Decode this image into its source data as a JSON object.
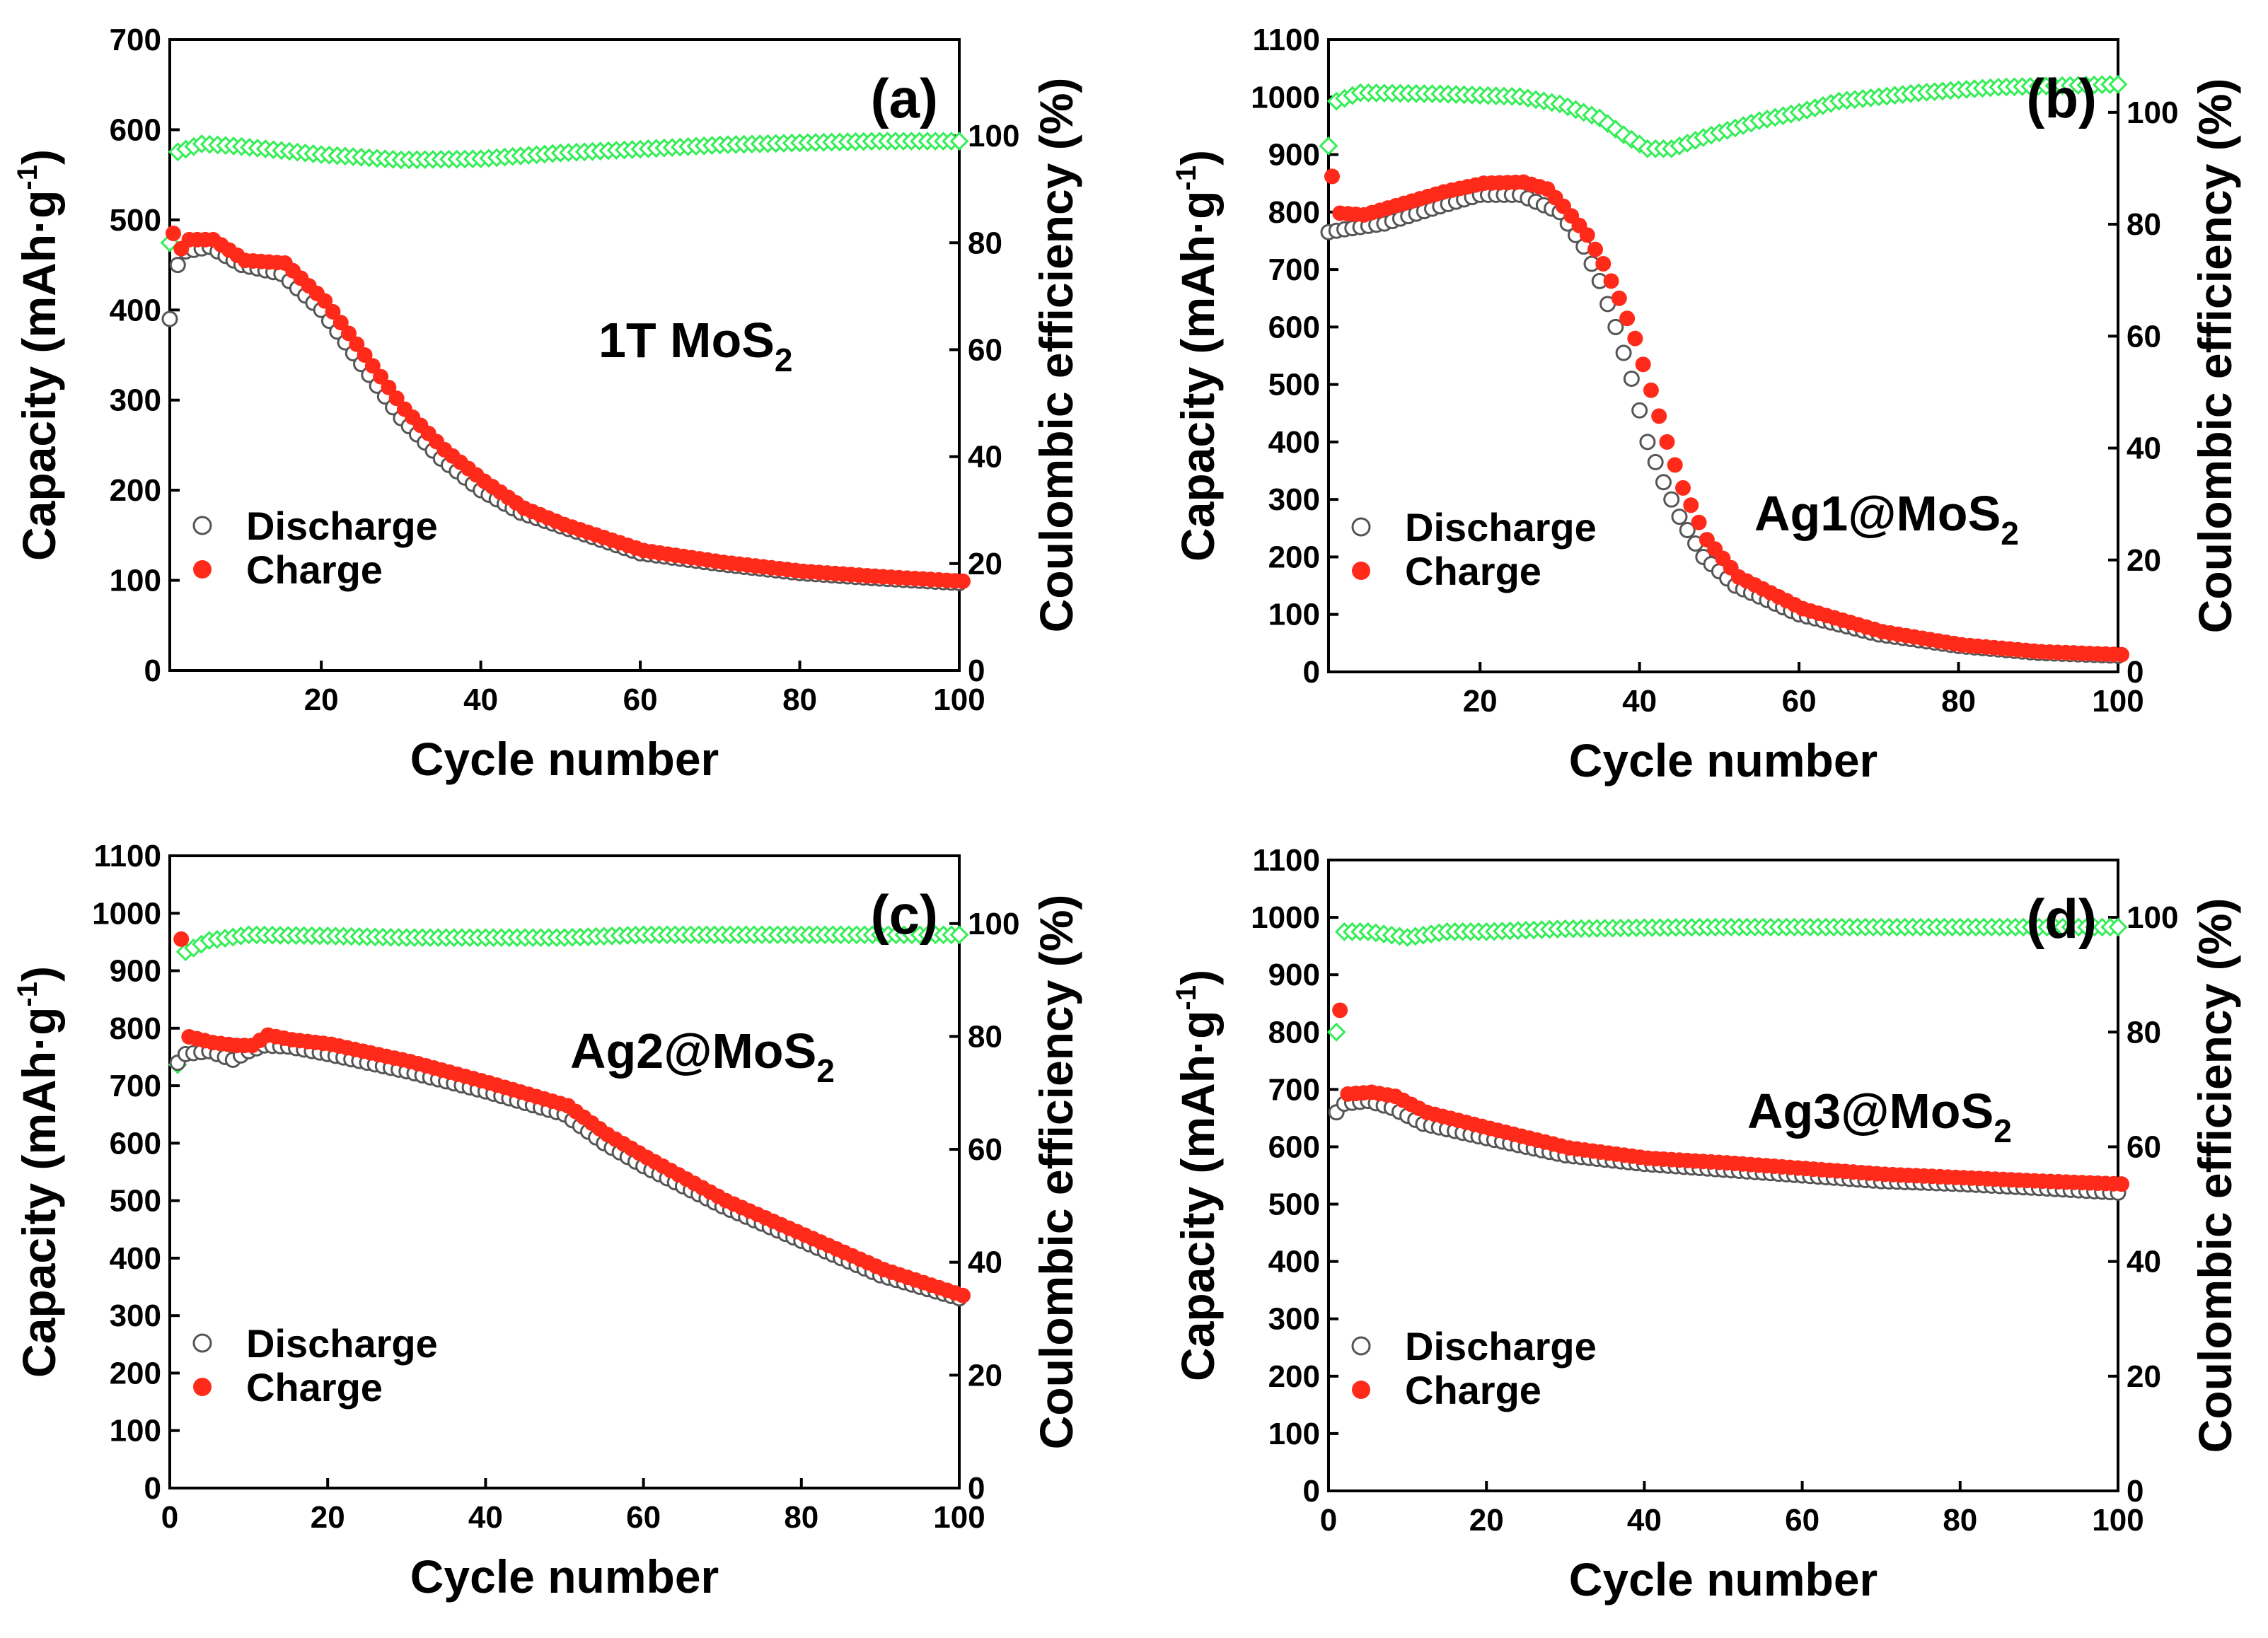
{
  "figure": {
    "legend_discharge": "Discharge",
    "legend_charge": "Charge"
  },
  "colors": {
    "discharge_edge": "#555555",
    "charge": "#ff2a1a",
    "efficiency": "#33ee55",
    "axis": "#000000"
  },
  "chart_data": [
    {
      "panel": "(a)",
      "material": "1T MoS",
      "material_sub": "2",
      "type": "scatter",
      "xlabel": "Cycle number",
      "ylabel_unit_main": "Capacity (mAh·g",
      "ylabel_unit_sup": "-1",
      "ylabel_close": ")",
      "y2label": "Coulombic efficiency (%)",
      "xlim": [
        1,
        100
      ],
      "ylim": [
        0,
        700
      ],
      "y2lim": [
        0,
        118
      ],
      "xticks": [
        20,
        40,
        60,
        80,
        100
      ],
      "yticks": [
        0,
        100,
        200,
        300,
        400,
        500,
        600,
        700
      ],
      "y2ticks": [
        0,
        20,
        40,
        60,
        80,
        100
      ],
      "legend_anchor": "lower-left",
      "series": [
        {
          "name": "Discharge",
          "axis": "left",
          "keypoints": [
            [
              1,
              390
            ],
            [
              2,
              450
            ],
            [
              3,
              465
            ],
            [
              6,
              470
            ],
            [
              10,
              450
            ],
            [
              15,
              440
            ],
            [
              20,
              400
            ],
            [
              25,
              340
            ],
            [
              30,
              280
            ],
            [
              35,
              235
            ],
            [
              40,
              200
            ],
            [
              45,
              175
            ],
            [
              50,
              160
            ],
            [
              60,
              130
            ],
            [
              70,
              118
            ],
            [
              80,
              108
            ],
            [
              90,
              102
            ],
            [
              100,
              97
            ]
          ]
        },
        {
          "name": "Charge",
          "axis": "left",
          "keypoints": [
            [
              1,
              485
            ],
            [
              2,
              468
            ],
            [
              3,
              478
            ],
            [
              6,
              478
            ],
            [
              10,
              455
            ],
            [
              15,
              452
            ],
            [
              20,
              410
            ],
            [
              25,
              350
            ],
            [
              30,
              290
            ],
            [
              35,
              245
            ],
            [
              40,
              210
            ],
            [
              45,
              180
            ],
            [
              50,
              162
            ],
            [
              60,
              133
            ],
            [
              70,
              120
            ],
            [
              80,
              110
            ],
            [
              90,
              104
            ],
            [
              100,
              99
            ]
          ]
        },
        {
          "name": "Coulombic efficiency",
          "axis": "right",
          "keypoints": [
            [
              1,
              80
            ],
            [
              2,
              97
            ],
            [
              5,
              98.5
            ],
            [
              10,
              98
            ],
            [
              20,
              96.5
            ],
            [
              30,
              95.5
            ],
            [
              40,
              95.7
            ],
            [
              50,
              96.8
            ],
            [
              60,
              97.5
            ],
            [
              70,
              98.3
            ],
            [
              80,
              98.7
            ],
            [
              90,
              99
            ],
            [
              100,
              99
            ]
          ]
        }
      ]
    },
    {
      "panel": "(b)",
      "material": "Ag1@MoS",
      "material_sub": "2",
      "type": "scatter",
      "xlabel": "Cycle number",
      "ylabel_unit_main": "Capacity (mAh·g",
      "ylabel_unit_sup": "-1",
      "ylabel_close": ")",
      "y2label": "Coulombic efficiency (%)",
      "xlim": [
        1,
        100
      ],
      "ylim": [
        0,
        1100
      ],
      "y2lim": [
        0,
        113
      ],
      "xticks": [
        20,
        40,
        60,
        80,
        100
      ],
      "yticks": [
        0,
        100,
        200,
        300,
        400,
        500,
        600,
        700,
        800,
        900,
        1000,
        1100
      ],
      "y2ticks": [
        0,
        20,
        40,
        60,
        80,
        100
      ],
      "legend_anchor": "lower-left",
      "series": [
        {
          "name": "Discharge",
          "axis": "left",
          "keypoints": [
            [
              1,
              765
            ],
            [
              3,
              770
            ],
            [
              8,
              780
            ],
            [
              15,
              810
            ],
            [
              20,
              830
            ],
            [
              25,
              830
            ],
            [
              30,
              800
            ],
            [
              33,
              740
            ],
            [
              35,
              680
            ],
            [
              37,
              600
            ],
            [
              39,
              510
            ],
            [
              41,
              400
            ],
            [
              43,
              330
            ],
            [
              45,
              270
            ],
            [
              48,
              200
            ],
            [
              52,
              150
            ],
            [
              60,
              100
            ],
            [
              70,
              65
            ],
            [
              80,
              45
            ],
            [
              90,
              33
            ],
            [
              100,
              28
            ]
          ]
        },
        {
          "name": "Charge",
          "axis": "left",
          "keypoints": [
            [
              1,
              862
            ],
            [
              2,
              798
            ],
            [
              5,
              795
            ],
            [
              10,
              815
            ],
            [
              15,
              835
            ],
            [
              20,
              850
            ],
            [
              25,
              852
            ],
            [
              28,
              840
            ],
            [
              30,
              810
            ],
            [
              33,
              760
            ],
            [
              35,
              710
            ],
            [
              37,
              650
            ],
            [
              39,
              580
            ],
            [
              41,
              490
            ],
            [
              43,
              400
            ],
            [
              45,
              320
            ],
            [
              48,
              230
            ],
            [
              52,
              165
            ],
            [
              60,
              110
            ],
            [
              70,
              70
            ],
            [
              80,
              47
            ],
            [
              90,
              35
            ],
            [
              100,
              30
            ]
          ]
        },
        {
          "name": "Coulombic efficiency",
          "axis": "right",
          "keypoints": [
            [
              1,
              94
            ],
            [
              2,
              102
            ],
            [
              5,
              103.5
            ],
            [
              15,
              103.3
            ],
            [
              25,
              102.8
            ],
            [
              30,
              101.5
            ],
            [
              35,
              99
            ],
            [
              38,
              96
            ],
            [
              41,
              93.5
            ],
            [
              44,
              93.5
            ],
            [
              48,
              95.5
            ],
            [
              55,
              98.5
            ],
            [
              60,
              100
            ],
            [
              65,
              102
            ],
            [
              75,
              103.5
            ],
            [
              85,
              104.5
            ],
            [
              100,
              105
            ]
          ]
        }
      ]
    },
    {
      "panel": "(c)",
      "material": "Ag2@MoS",
      "material_sub": "2",
      "type": "scatter",
      "xlabel": "Cycle number",
      "ylabel_unit_main": "Capacity (mAh·g",
      "ylabel_unit_sup": "-1",
      "ylabel_close": ")",
      "y2label": "Coulombic efficiency (%)",
      "xlim": [
        0,
        100
      ],
      "ylim": [
        0,
        1100
      ],
      "y2lim": [
        0,
        112
      ],
      "xticks": [
        0,
        20,
        40,
        60,
        80,
        100
      ],
      "yticks": [
        0,
        100,
        200,
        300,
        400,
        500,
        600,
        700,
        800,
        900,
        1000,
        1100
      ],
      "y2ticks": [
        0,
        20,
        40,
        60,
        80,
        100
      ],
      "legend_anchor": "lower-left",
      "series": [
        {
          "name": "Discharge",
          "axis": "left",
          "keypoints": [
            [
              1,
              740
            ],
            [
              2,
              755
            ],
            [
              5,
              760
            ],
            [
              8,
              745
            ],
            [
              10,
              760
            ],
            [
              12,
              770
            ],
            [
              15,
              768
            ],
            [
              20,
              755
            ],
            [
              30,
              725
            ],
            [
              40,
              690
            ],
            [
              45,
              670
            ],
            [
              50,
              650
            ],
            [
              55,
              600
            ],
            [
              60,
              560
            ],
            [
              70,
              490
            ],
            [
              80,
              430
            ],
            [
              90,
              370
            ],
            [
              100,
              330
            ]
          ]
        },
        {
          "name": "Charge",
          "axis": "left",
          "keypoints": [
            [
              1,
              955
            ],
            [
              2,
              785
            ],
            [
              5,
              775
            ],
            [
              8,
              770
            ],
            [
              10,
              770
            ],
            [
              12,
              788
            ],
            [
              15,
              780
            ],
            [
              20,
              772
            ],
            [
              30,
              742
            ],
            [
              40,
              705
            ],
            [
              45,
              685
            ],
            [
              50,
              665
            ],
            [
              55,
              615
            ],
            [
              60,
              575
            ],
            [
              70,
              500
            ],
            [
              80,
              440
            ],
            [
              90,
              380
            ],
            [
              100,
              335
            ]
          ]
        },
        {
          "name": "Coulombic efficiency",
          "axis": "right",
          "keypoints": [
            [
              1,
              75
            ],
            [
              2,
              95
            ],
            [
              5,
              97
            ],
            [
              10,
              98
            ],
            [
              20,
              97.8
            ],
            [
              30,
              97.5
            ],
            [
              40,
              97.5
            ],
            [
              50,
              97.5
            ],
            [
              60,
              98
            ],
            [
              70,
              98
            ],
            [
              80,
              98
            ],
            [
              90,
              98
            ],
            [
              100,
              98
            ]
          ]
        }
      ]
    },
    {
      "panel": "(d)",
      "material": "Ag3@MoS",
      "material_sub": "2",
      "type": "scatter",
      "xlabel": "Cycle number",
      "ylabel_unit_main": "Capacity (mAh·g",
      "ylabel_unit_sup": "-1",
      "ylabel_close": ")",
      "y2label": "Coulombic efficiency (%)",
      "xlim": [
        0,
        100
      ],
      "ylim": [
        0,
        1100
      ],
      "y2lim": [
        0,
        110
      ],
      "xticks": [
        0,
        20,
        40,
        60,
        80,
        100
      ],
      "yticks": [
        0,
        100,
        200,
        300,
        400,
        500,
        600,
        700,
        800,
        900,
        1000,
        1100
      ],
      "y2ticks": [
        0,
        20,
        40,
        60,
        80,
        100
      ],
      "legend_anchor": "lower-left",
      "series": [
        {
          "name": "Discharge",
          "axis": "left",
          "keypoints": [
            [
              1,
              660
            ],
            [
              2,
              675
            ],
            [
              5,
              680
            ],
            [
              8,
              668
            ],
            [
              12,
              640
            ],
            [
              20,
              615
            ],
            [
              30,
              585
            ],
            [
              40,
              570
            ],
            [
              50,
              560
            ],
            [
              60,
              550
            ],
            [
              70,
              540
            ],
            [
              80,
              535
            ],
            [
              90,
              528
            ],
            [
              100,
              520
            ]
          ]
        },
        {
          "name": "Charge",
          "axis": "left",
          "keypoints": [
            [
              1,
              838
            ],
            [
              2,
              692
            ],
            [
              5,
              695
            ],
            [
              8,
              688
            ],
            [
              12,
              660
            ],
            [
              20,
              632
            ],
            [
              30,
              598
            ],
            [
              40,
              580
            ],
            [
              50,
              572
            ],
            [
              60,
              562
            ],
            [
              70,
              552
            ],
            [
              80,
              546
            ],
            [
              90,
              540
            ],
            [
              100,
              535
            ]
          ]
        },
        {
          "name": "Coulombic efficiency",
          "axis": "right",
          "keypoints": [
            [
              1,
              80
            ],
            [
              2,
              97.5
            ],
            [
              5,
              97.5
            ],
            [
              10,
              96.5
            ],
            [
              15,
              97.5
            ],
            [
              20,
              97.5
            ],
            [
              30,
              98
            ],
            [
              40,
              98.2
            ],
            [
              50,
              98.3
            ],
            [
              60,
              98.3
            ],
            [
              70,
              98.3
            ],
            [
              80,
              98.3
            ],
            [
              90,
              98.3
            ],
            [
              100,
              98.3
            ]
          ]
        }
      ]
    }
  ]
}
